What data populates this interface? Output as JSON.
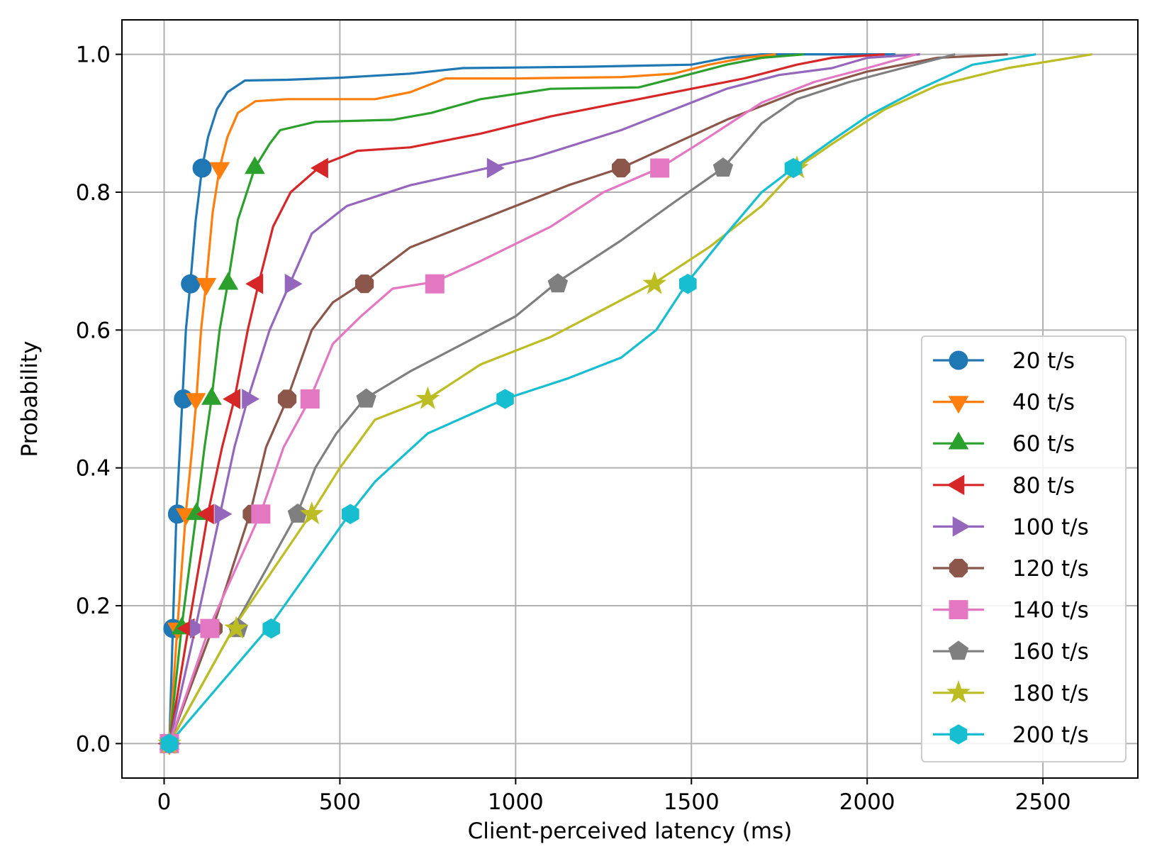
{
  "chart_data": {
    "type": "line",
    "title": "",
    "xlabel": "Client-perceived latency (ms)",
    "ylabel": "Probability",
    "xlim": [
      -120,
      2770
    ],
    "ylim": [
      -0.05,
      1.05
    ],
    "xticks": [
      0,
      500,
      1000,
      1500,
      2000,
      2500
    ],
    "xtick_labels": [
      "0",
      "500",
      "1000",
      "1500",
      "2000",
      "2500"
    ],
    "yticks": [
      0.0,
      0.2,
      0.4,
      0.6,
      0.8,
      1.0
    ],
    "ytick_labels": [
      "0.0",
      "0.2",
      "0.4",
      "0.6",
      "0.8",
      "1.0"
    ],
    "grid": true,
    "legend_position": "lower-right",
    "series": [
      {
        "name": "20 t/s",
        "color": "#1f77b4",
        "marker": "circle",
        "points": [
          [
            15,
            0
          ],
          [
            25,
            0.17
          ],
          [
            35,
            0.335
          ],
          [
            45,
            0.43
          ],
          [
            52,
            0.5
          ],
          [
            62,
            0.6
          ],
          [
            75,
            0.67
          ],
          [
            90,
            0.76
          ],
          [
            108,
            0.835
          ],
          [
            125,
            0.88
          ],
          [
            150,
            0.92
          ],
          [
            180,
            0.945
          ],
          [
            230,
            0.962
          ],
          [
            350,
            0.963
          ],
          [
            500,
            0.966
          ],
          [
            700,
            0.972
          ],
          [
            850,
            0.98
          ],
          [
            1200,
            0.982
          ],
          [
            1500,
            0.985
          ],
          [
            1600,
            0.995
          ],
          [
            1700,
            1.0
          ],
          [
            2080,
            1.0
          ]
        ],
        "markers": [
          [
            15,
            0
          ],
          [
            25,
            0.167
          ],
          [
            38,
            0.333
          ],
          [
            55,
            0.5
          ],
          [
            75,
            0.667
          ],
          [
            108,
            0.835
          ]
        ]
      },
      {
        "name": "40 t/s",
        "color": "#ff7f0e",
        "marker": "triangle-down",
        "points": [
          [
            15,
            0
          ],
          [
            38,
            0.17
          ],
          [
            62,
            0.335
          ],
          [
            80,
            0.43
          ],
          [
            92,
            0.5
          ],
          [
            105,
            0.6
          ],
          [
            120,
            0.67
          ],
          [
            138,
            0.77
          ],
          [
            158,
            0.835
          ],
          [
            180,
            0.88
          ],
          [
            210,
            0.915
          ],
          [
            260,
            0.932
          ],
          [
            350,
            0.935
          ],
          [
            600,
            0.935
          ],
          [
            700,
            0.945
          ],
          [
            800,
            0.965
          ],
          [
            1000,
            0.965
          ],
          [
            1300,
            0.967
          ],
          [
            1450,
            0.972
          ],
          [
            1550,
            0.985
          ],
          [
            1650,
            0.995
          ],
          [
            1740,
            1.0
          ]
        ],
        "markers": [
          [
            15,
            0
          ],
          [
            38,
            0.167
          ],
          [
            62,
            0.333
          ],
          [
            90,
            0.5
          ],
          [
            120,
            0.667
          ],
          [
            158,
            0.835
          ]
        ]
      },
      {
        "name": "60 t/s",
        "color": "#2ca02c",
        "marker": "triangle-up",
        "points": [
          [
            15,
            0
          ],
          [
            50,
            0.17
          ],
          [
            92,
            0.335
          ],
          [
            115,
            0.43
          ],
          [
            135,
            0.5
          ],
          [
            158,
            0.6
          ],
          [
            182,
            0.67
          ],
          [
            210,
            0.76
          ],
          [
            258,
            0.835
          ],
          [
            300,
            0.87
          ],
          [
            330,
            0.89
          ],
          [
            430,
            0.902
          ],
          [
            650,
            0.905
          ],
          [
            760,
            0.915
          ],
          [
            900,
            0.935
          ],
          [
            1100,
            0.95
          ],
          [
            1350,
            0.952
          ],
          [
            1450,
            0.965
          ],
          [
            1600,
            0.985
          ],
          [
            1700,
            0.995
          ],
          [
            1820,
            1.0
          ]
        ],
        "markers": [
          [
            15,
            0
          ],
          [
            50,
            0.167
          ],
          [
            92,
            0.333
          ],
          [
            135,
            0.5
          ],
          [
            182,
            0.667
          ],
          [
            258,
            0.835
          ]
        ]
      },
      {
        "name": "80 t/s",
        "color": "#d62728",
        "marker": "triangle-left",
        "points": [
          [
            15,
            0
          ],
          [
            70,
            0.17
          ],
          [
            125,
            0.335
          ],
          [
            165,
            0.43
          ],
          [
            200,
            0.5
          ],
          [
            238,
            0.6
          ],
          [
            270,
            0.67
          ],
          [
            310,
            0.75
          ],
          [
            360,
            0.8
          ],
          [
            450,
            0.84
          ],
          [
            550,
            0.86
          ],
          [
            700,
            0.865
          ],
          [
            900,
            0.885
          ],
          [
            1100,
            0.91
          ],
          [
            1300,
            0.93
          ],
          [
            1500,
            0.95
          ],
          [
            1650,
            0.965
          ],
          [
            1800,
            0.985
          ],
          [
            1900,
            0.995
          ],
          [
            2050,
            1.0
          ]
        ],
        "markers": [
          [
            15,
            0
          ],
          [
            70,
            0.167
          ],
          [
            125,
            0.333
          ],
          [
            200,
            0.5
          ],
          [
            265,
            0.667
          ],
          [
            450,
            0.835
          ]
        ]
      },
      {
        "name": "100 t/s",
        "color": "#9467bd",
        "marker": "triangle-right",
        "points": [
          [
            15,
            0
          ],
          [
            90,
            0.17
          ],
          [
            160,
            0.335
          ],
          [
            200,
            0.43
          ],
          [
            238,
            0.5
          ],
          [
            300,
            0.6
          ],
          [
            360,
            0.67
          ],
          [
            420,
            0.74
          ],
          [
            520,
            0.78
          ],
          [
            700,
            0.81
          ],
          [
            920,
            0.835
          ],
          [
            1050,
            0.85
          ],
          [
            1300,
            0.89
          ],
          [
            1500,
            0.93
          ],
          [
            1600,
            0.95
          ],
          [
            1750,
            0.97
          ],
          [
            1900,
            0.98
          ],
          [
            2000,
            0.995
          ],
          [
            2150,
            1.0
          ]
        ],
        "markers": [
          [
            15,
            0
          ],
          [
            90,
            0.167
          ],
          [
            160,
            0.333
          ],
          [
            238,
            0.5
          ],
          [
            360,
            0.667
          ],
          [
            935,
            0.835
          ]
        ]
      },
      {
        "name": "120 t/s",
        "color": "#8c564b",
        "marker": "octagon",
        "points": [
          [
            15,
            0
          ],
          [
            140,
            0.17
          ],
          [
            245,
            0.335
          ],
          [
            290,
            0.43
          ],
          [
            350,
            0.5
          ],
          [
            420,
            0.6
          ],
          [
            480,
            0.64
          ],
          [
            570,
            0.67
          ],
          [
            700,
            0.72
          ],
          [
            850,
            0.75
          ],
          [
            1000,
            0.78
          ],
          [
            1150,
            0.81
          ],
          [
            1300,
            0.835
          ],
          [
            1450,
            0.87
          ],
          [
            1600,
            0.905
          ],
          [
            1800,
            0.945
          ],
          [
            2000,
            0.975
          ],
          [
            2200,
            0.995
          ],
          [
            2400,
            1.0
          ]
        ],
        "markers": [
          [
            15,
            0
          ],
          [
            140,
            0.167
          ],
          [
            250,
            0.333
          ],
          [
            350,
            0.5
          ],
          [
            570,
            0.667
          ],
          [
            1300,
            0.835
          ]
        ]
      },
      {
        "name": "140 t/s",
        "color": "#e377c2",
        "marker": "square",
        "points": [
          [
            15,
            0
          ],
          [
            130,
            0.17
          ],
          [
            275,
            0.335
          ],
          [
            340,
            0.43
          ],
          [
            415,
            0.5
          ],
          [
            480,
            0.58
          ],
          [
            560,
            0.62
          ],
          [
            650,
            0.66
          ],
          [
            770,
            0.67
          ],
          [
            900,
            0.7
          ],
          [
            1100,
            0.75
          ],
          [
            1250,
            0.8
          ],
          [
            1410,
            0.835
          ],
          [
            1550,
            0.88
          ],
          [
            1700,
            0.93
          ],
          [
            1850,
            0.96
          ],
          [
            2000,
            0.98
          ],
          [
            2140,
            1.0
          ]
        ],
        "markers": [
          [
            15,
            0
          ],
          [
            130,
            0.167
          ],
          [
            275,
            0.333
          ],
          [
            415,
            0.5
          ],
          [
            770,
            0.667
          ],
          [
            1410,
            0.835
          ]
        ]
      },
      {
        "name": "160 t/s",
        "color": "#7f7f7f",
        "marker": "pentagon",
        "points": [
          [
            15,
            0
          ],
          [
            200,
            0.17
          ],
          [
            380,
            0.335
          ],
          [
            430,
            0.4
          ],
          [
            490,
            0.45
          ],
          [
            570,
            0.5
          ],
          [
            700,
            0.54
          ],
          [
            850,
            0.58
          ],
          [
            1000,
            0.62
          ],
          [
            1120,
            0.67
          ],
          [
            1300,
            0.73
          ],
          [
            1450,
            0.785
          ],
          [
            1590,
            0.835
          ],
          [
            1700,
            0.9
          ],
          [
            1800,
            0.935
          ],
          [
            1950,
            0.96
          ],
          [
            2100,
            0.98
          ],
          [
            2250,
            1.0
          ]
        ],
        "markers": [
          [
            15,
            0
          ],
          [
            210,
            0.167
          ],
          [
            380,
            0.333
          ],
          [
            575,
            0.5
          ],
          [
            1120,
            0.667
          ],
          [
            1590,
            0.835
          ]
        ]
      },
      {
        "name": "180 t/s",
        "color": "#bcbd22",
        "marker": "star",
        "points": [
          [
            15,
            0
          ],
          [
            200,
            0.17
          ],
          [
            420,
            0.335
          ],
          [
            500,
            0.4
          ],
          [
            600,
            0.47
          ],
          [
            750,
            0.5
          ],
          [
            900,
            0.55
          ],
          [
            1100,
            0.59
          ],
          [
            1250,
            0.63
          ],
          [
            1400,
            0.67
          ],
          [
            1550,
            0.72
          ],
          [
            1700,
            0.78
          ],
          [
            1800,
            0.835
          ],
          [
            1900,
            0.87
          ],
          [
            2050,
            0.92
          ],
          [
            2200,
            0.955
          ],
          [
            2400,
            0.98
          ],
          [
            2640,
            1.0
          ]
        ],
        "markers": [
          [
            15,
            0
          ],
          [
            205,
            0.167
          ],
          [
            420,
            0.333
          ],
          [
            750,
            0.5
          ],
          [
            1395,
            0.667
          ],
          [
            1800,
            0.835
          ]
        ]
      },
      {
        "name": "200 t/s",
        "color": "#17becf",
        "marker": "hexagon",
        "points": [
          [
            15,
            0
          ],
          [
            300,
            0.17
          ],
          [
            530,
            0.335
          ],
          [
            600,
            0.38
          ],
          [
            750,
            0.45
          ],
          [
            970,
            0.5
          ],
          [
            1150,
            0.53
          ],
          [
            1300,
            0.56
          ],
          [
            1400,
            0.6
          ],
          [
            1490,
            0.67
          ],
          [
            1600,
            0.74
          ],
          [
            1700,
            0.8
          ],
          [
            1790,
            0.835
          ],
          [
            1900,
            0.875
          ],
          [
            2000,
            0.91
          ],
          [
            2150,
            0.95
          ],
          [
            2300,
            0.985
          ],
          [
            2480,
            1.0
          ]
        ],
        "markers": [
          [
            15,
            0
          ],
          [
            305,
            0.167
          ],
          [
            530,
            0.333
          ],
          [
            970,
            0.5
          ],
          [
            1490,
            0.667
          ],
          [
            1790,
            0.835
          ]
        ]
      }
    ]
  }
}
